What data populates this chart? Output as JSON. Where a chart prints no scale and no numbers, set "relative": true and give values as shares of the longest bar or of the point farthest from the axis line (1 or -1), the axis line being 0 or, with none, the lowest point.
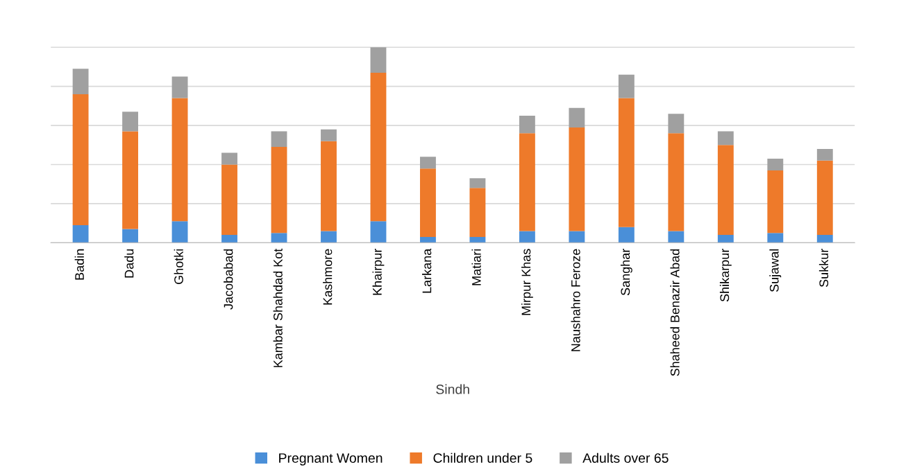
{
  "chart_data": {
    "type": "bar",
    "stacked": true,
    "relative": true,
    "xlabel": "Sindh",
    "legend": "bottom",
    "grid": "y",
    "categories": [
      "Badin",
      "Dadu",
      "Ghotki",
      "Jacobabad",
      "Kambar Shahdad Kot",
      "Kashmore",
      "Khairpur",
      "Larkana",
      "Matiari",
      "Mirpur Khas",
      "Naushahro Feroze",
      "Sanghar",
      "Shaheed Benazir Abad",
      "Shikarpur",
      "Sujawal",
      "Sukkur"
    ],
    "series": [
      {
        "name": "Pregnant Women",
        "color": "#4a8fd8",
        "values": [
          0.09,
          0.07,
          0.11,
          0.04,
          0.05,
          0.06,
          0.11,
          0.03,
          0.03,
          0.06,
          0.06,
          0.08,
          0.06,
          0.04,
          0.05,
          0.04
        ]
      },
      {
        "name": "Children under 5",
        "color": "#ee7a2a",
        "values": [
          0.67,
          0.5,
          0.63,
          0.36,
          0.44,
          0.46,
          0.76,
          0.35,
          0.25,
          0.5,
          0.53,
          0.66,
          0.5,
          0.46,
          0.32,
          0.38
        ]
      },
      {
        "name": "Adults over 65",
        "color": "#a0a0a0",
        "values": [
          0.13,
          0.1,
          0.11,
          0.06,
          0.08,
          0.06,
          0.13,
          0.06,
          0.05,
          0.09,
          0.1,
          0.12,
          0.1,
          0.07,
          0.06,
          0.06
        ]
      }
    ]
  }
}
